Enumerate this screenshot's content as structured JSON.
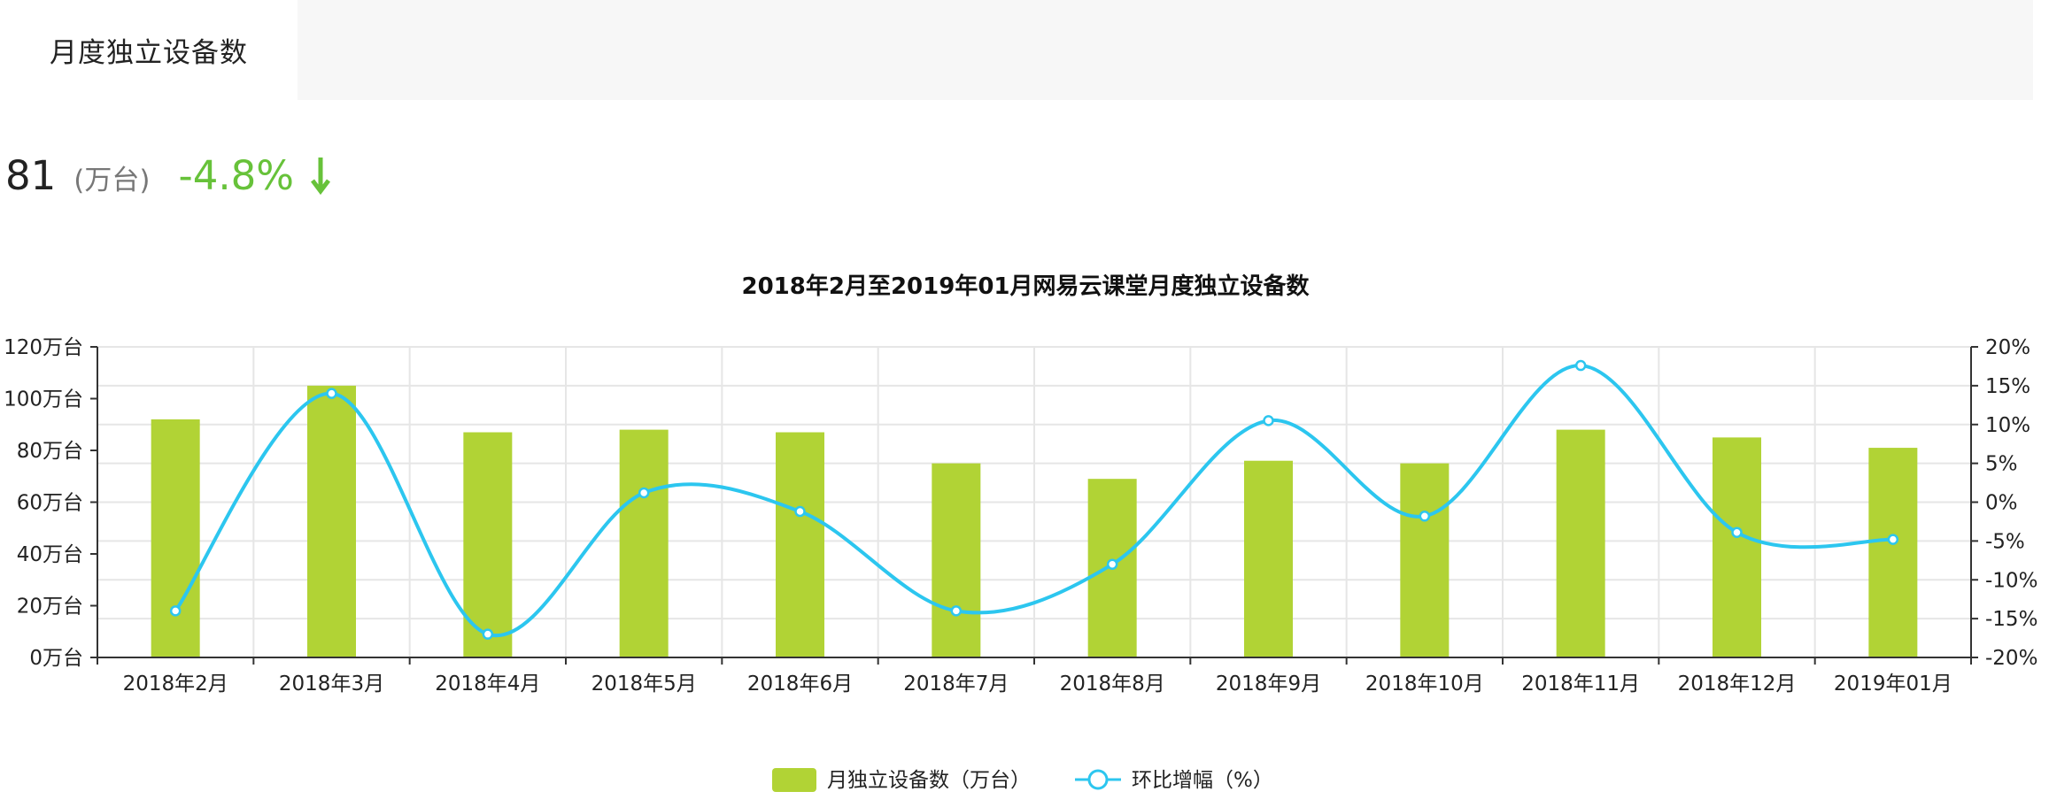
{
  "tab": {
    "label": "月度独立设备数"
  },
  "summary": {
    "value": "81",
    "unit": "(万台)",
    "change": "-4.8%",
    "trend_icon": "arrow-down-icon",
    "trend_color": "#67c23a"
  },
  "colors": {
    "bar": "#b1d335",
    "line": "#2cc6ef",
    "grid": "#e6e6e6",
    "axis": "#333333"
  },
  "chart_data": {
    "type": "bar",
    "title": "2018年2月至2019年01月网易云课堂月度独立设备数",
    "categories": [
      "2018年2月",
      "2018年3月",
      "2018年4月",
      "2018年5月",
      "2018年6月",
      "2018年7月",
      "2018年8月",
      "2018年9月",
      "2018年10月",
      "2018年11月",
      "2018年12月",
      "2019年01月"
    ],
    "y_left": {
      "min": 0,
      "max": 120,
      "ticks": [
        "0万台",
        "20万台",
        "40万台",
        "60万台",
        "80万台",
        "100万台",
        "120万台"
      ]
    },
    "y_right": {
      "min": -20,
      "max": 20,
      "ticks": [
        "-20%",
        "-15%",
        "-10%",
        "-5%",
        "0%",
        "5%",
        "10%",
        "15%",
        "20%"
      ]
    },
    "grid": true,
    "legend_position": "bottom-center",
    "series": [
      {
        "name": "月独立设备数（万台）",
        "type": "bar",
        "axis": "left",
        "values": [
          92,
          105,
          87,
          88,
          87,
          75,
          69,
          76,
          75,
          88,
          85,
          81
        ]
      },
      {
        "name": "环比增幅（%）",
        "type": "line",
        "axis": "right",
        "smooth": true,
        "values": [
          -14,
          14,
          -17,
          1.2,
          -1.2,
          -14,
          -8,
          10.5,
          -1.8,
          17.6,
          -3.9,
          -4.8
        ]
      }
    ]
  }
}
